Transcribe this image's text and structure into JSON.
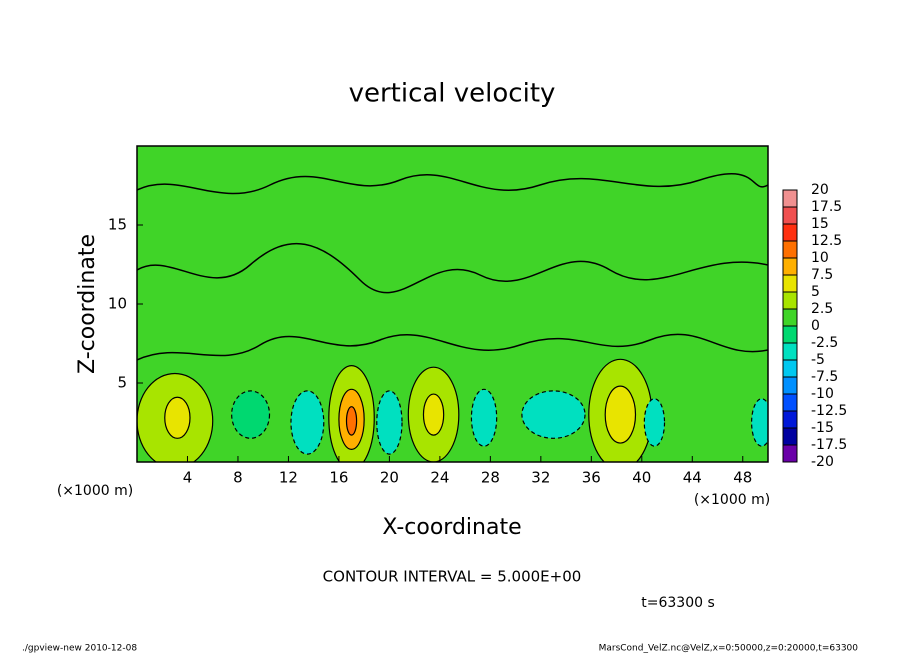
{
  "chart_data": {
    "type": "contour",
    "title": "vertical velocity",
    "x_label": "X-coordinate",
    "y_label": "Z-coordinate",
    "x_unit": "(×1000 m)",
    "y_unit": "(×1000 m)",
    "xlim": [
      0,
      50
    ],
    "xticks": [
      4,
      8,
      12,
      16,
      20,
      24,
      28,
      32,
      36,
      40,
      44,
      48
    ],
    "ylim": [
      0,
      20
    ],
    "yticks": [
      5,
      10,
      15
    ],
    "contour_note": "CONTOUR INTERVAL = 5.000E+00",
    "time_note": "t=63300 s",
    "footer_left": "./gpview-new  2010-12-08",
    "footer_right": "MarsCond_VelZ.nc@VelZ,x=0:50000,z=0:20000,t=63300",
    "levels": [
      -20,
      -17.5,
      -15,
      -12.5,
      -10,
      -7.5,
      -5,
      -2.5,
      0,
      2.5,
      5,
      7.5,
      10,
      12.5,
      15,
      17.5,
      20
    ],
    "colors": [
      "#6a00a8",
      "#0000a0",
      "#0018d8",
      "#0050ff",
      "#0090ff",
      "#00c8f0",
      "#00e0c0",
      "#00d870",
      "#40d428",
      "#a8e400",
      "#e8e400",
      "#ffb000",
      "#ff7000",
      "#ff3010",
      "#f05050",
      "#f09090"
    ],
    "features": [
      {
        "x": 3,
        "z": 2.6,
        "rx": 3,
        "rz": 3,
        "value": 4
      },
      {
        "x": 3.2,
        "z": 2.8,
        "rx": 1,
        "rz": 1.3,
        "value": 7
      },
      {
        "x": 17,
        "z": 2.8,
        "rx": 1.8,
        "rz": 3.3,
        "value": 4
      },
      {
        "x": 17,
        "z": 2.7,
        "rx": 1,
        "rz": 1.9,
        "value": 8
      },
      {
        "x": 17,
        "z": 2.6,
        "rx": 0.4,
        "rz": 0.9,
        "value": 11
      },
      {
        "x": 23.5,
        "z": 3,
        "rx": 2,
        "rz": 3,
        "value": 4
      },
      {
        "x": 23.5,
        "z": 3,
        "rx": 0.8,
        "rz": 1.3,
        "value": 7
      },
      {
        "x": 38.3,
        "z": 3,
        "rx": 2.5,
        "rz": 3.5,
        "value": 4
      },
      {
        "x": 38.3,
        "z": 3,
        "rx": 1.2,
        "rz": 1.8,
        "value": 7
      },
      {
        "x": 13.5,
        "z": 2.5,
        "rx": 1.3,
        "rz": 2,
        "value": -5
      },
      {
        "x": 20,
        "z": 2.5,
        "rx": 1,
        "rz": 2,
        "value": -5
      },
      {
        "x": 27.5,
        "z": 2.8,
        "rx": 1,
        "rz": 1.8,
        "value": -4
      },
      {
        "x": 33,
        "z": 3,
        "rx": 2.5,
        "rz": 1.5,
        "value": -3
      },
      {
        "x": 41,
        "z": 2.5,
        "rx": 0.8,
        "rz": 1.5,
        "value": -4
      },
      {
        "x": 49.5,
        "z": 2.5,
        "rx": 0.8,
        "rz": 1.5,
        "value": -4
      },
      {
        "x": 9,
        "z": 3,
        "rx": 1.5,
        "rz": 1.5,
        "value": -2
      }
    ]
  }
}
